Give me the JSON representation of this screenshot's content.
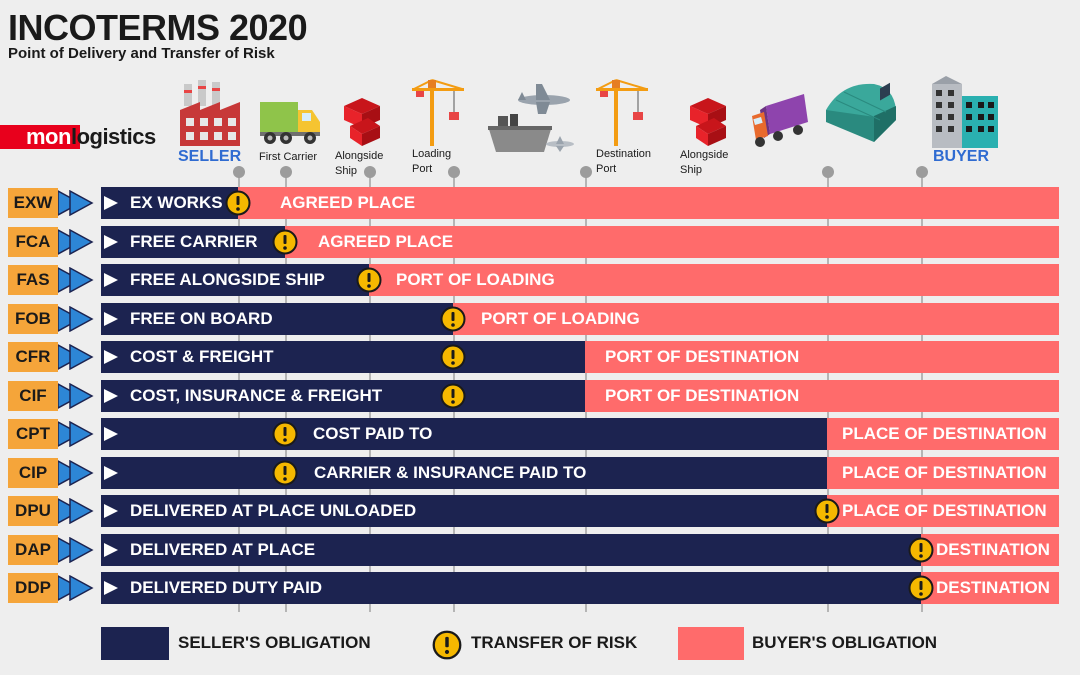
{
  "header": {
    "title": "INCOTERMS 2020",
    "subtitle": "Point of Delivery and Transfer of Risk"
  },
  "logo": {
    "part1": "mon",
    "part2": "logistics"
  },
  "stops": [
    {
      "label": "SELLER",
      "icon": "factory-icon"
    },
    {
      "label": "First Carrier",
      "icon": "truck-icon"
    },
    {
      "label": "Alongside\nShip",
      "icon": "cargo-box-icon"
    },
    {
      "label": "Loading\nPort",
      "icon": "crane-icon"
    },
    {
      "label": "",
      "icon": "ship-plane-icon"
    },
    {
      "label": "Destination\nPort",
      "icon": "crane-icon"
    },
    {
      "label": "Alongside\nShip",
      "icon": "cargo-box-icon"
    },
    {
      "label": "",
      "icon": "truck-icon"
    },
    {
      "label": "",
      "icon": "warehouse-icon"
    },
    {
      "label": "BUYER",
      "icon": "building-icon"
    }
  ],
  "terms": [
    {
      "code": "EXW",
      "seller": "EX WORKS",
      "buyer": "AGREED PLACE"
    },
    {
      "code": "FCA",
      "seller": "FREE CARRIER",
      "buyer": "AGREED PLACE"
    },
    {
      "code": "FAS",
      "seller": "FREE ALONGSIDE SHIP",
      "buyer": "PORT OF LOADING"
    },
    {
      "code": "FOB",
      "seller": "FREE ON BOARD",
      "buyer": "PORT OF LOADING"
    },
    {
      "code": "CFR",
      "seller": "COST & FREIGHT",
      "buyer": "PORT OF DESTINATION"
    },
    {
      "code": "CIF",
      "seller": "COST, INSURANCE & FREIGHT",
      "buyer": "PORT OF DESTINATION"
    },
    {
      "code": "CPT",
      "seller": "COST PAID TO",
      "buyer": "PLACE OF DESTINATION"
    },
    {
      "code": "CIP",
      "seller": "CARRIER & INSURANCE PAID TO",
      "buyer": "PLACE OF DESTINATION"
    },
    {
      "code": "DPU",
      "seller": "DELIVERED AT PLACE UNLOADED",
      "buyer": "PLACE OF DESTINATION"
    },
    {
      "code": "DAP",
      "seller": "DELIVERED AT PLACE",
      "buyer": "DESTINATION"
    },
    {
      "code": "DDP",
      "seller": "DELIVERED DUTY PAID",
      "buyer": "DESTINATION"
    }
  ],
  "legend": {
    "seller": "SELLER'S OBLIGATION",
    "risk": "TRANSFER OF RISK",
    "buyer": "BUYER'S OBLIGATION"
  },
  "colors": {
    "seller": "#1c2350",
    "buyer": "#ff6b6b",
    "code": "#f5a53a",
    "risk": "#f5b800",
    "accent": "#2f6bd1",
    "logo": "#e8001c"
  }
}
